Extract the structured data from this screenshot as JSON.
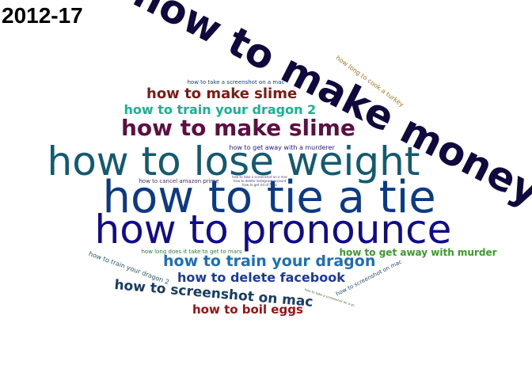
{
  "year_label": "2012-17",
  "words": [
    {
      "text": "how to make money",
      "color": "#0e0a3d",
      "weight": "bold",
      "rotation": 27
    },
    {
      "text": "how to lose weight",
      "color": "#135970",
      "weight": "normal",
      "rotation": 0
    },
    {
      "text": "how to tie a tie",
      "color": "#0d3a84",
      "weight": "normal",
      "rotation": 0
    },
    {
      "text": "how to pronounce",
      "color": "#0f0c8f",
      "weight": "normal",
      "rotation": 0
    },
    {
      "text": "how to make slime",
      "color": "#5d0f44",
      "weight": "bold",
      "rotation": 0
    },
    {
      "text": "how to make slime",
      "color": "#7d1c16",
      "weight": "bold",
      "rotation": 0
    },
    {
      "text": "how to train your dragon 2",
      "color": "#18b293",
      "weight": "bold",
      "rotation": 0
    },
    {
      "text": "how to train your dragon",
      "color": "#1b6fb9",
      "weight": "bold",
      "rotation": 0
    },
    {
      "text": "how to delete facebook",
      "color": "#1b3a9c",
      "weight": "bold",
      "rotation": 0
    },
    {
      "text": "how to screenshot on mac",
      "color": "#173c66",
      "weight": "bold",
      "rotation": 5
    },
    {
      "text": "how to boil eggs",
      "color": "#9b1212",
      "weight": "bold",
      "rotation": 0
    },
    {
      "text": "how to get away with murder",
      "color": "#3a9a2a",
      "weight": "bold",
      "rotation": 0
    },
    {
      "text": "how long to cook a turkey",
      "color": "#a8761e",
      "weight": "normal",
      "rotation": 36
    },
    {
      "text": "how to take a screenshot on a mac",
      "color": "#1b3f8e",
      "weight": "normal",
      "rotation": 0
    },
    {
      "text": "how to get away with a murderer",
      "color": "#241896",
      "weight": "normal",
      "rotation": 0
    },
    {
      "text": "how to cancel amazon prime",
      "color": "#4a2a6e",
      "weight": "normal",
      "rotation": 0
    },
    {
      "text": "how long does it take to get to mars",
      "color": "#2e7f3b",
      "weight": "normal",
      "rotation": 0
    },
    {
      "text": "how to train your dragon 2",
      "color": "#1e5c66",
      "weight": "normal",
      "rotation": 20
    },
    {
      "text": "how to screenshot on mac",
      "color": "#2a4e7e",
      "weight": "normal",
      "rotation": -27
    },
    {
      "text": "how to take a screenshot on a mac",
      "color": "#5d3a7a",
      "weight": "normal",
      "rotation": 0
    },
    {
      "text": "how to delete instagram account",
      "color": "#3a3a7e",
      "weight": "normal",
      "rotation": 0
    },
    {
      "text": "how to get rid of fleas",
      "color": "#3d3d5a",
      "weight": "normal",
      "rotation": 0
    },
    {
      "text": "how to take a screenshot on a pc",
      "color": "#4a6a2a",
      "weight": "normal",
      "rotation": 18
    }
  ]
}
